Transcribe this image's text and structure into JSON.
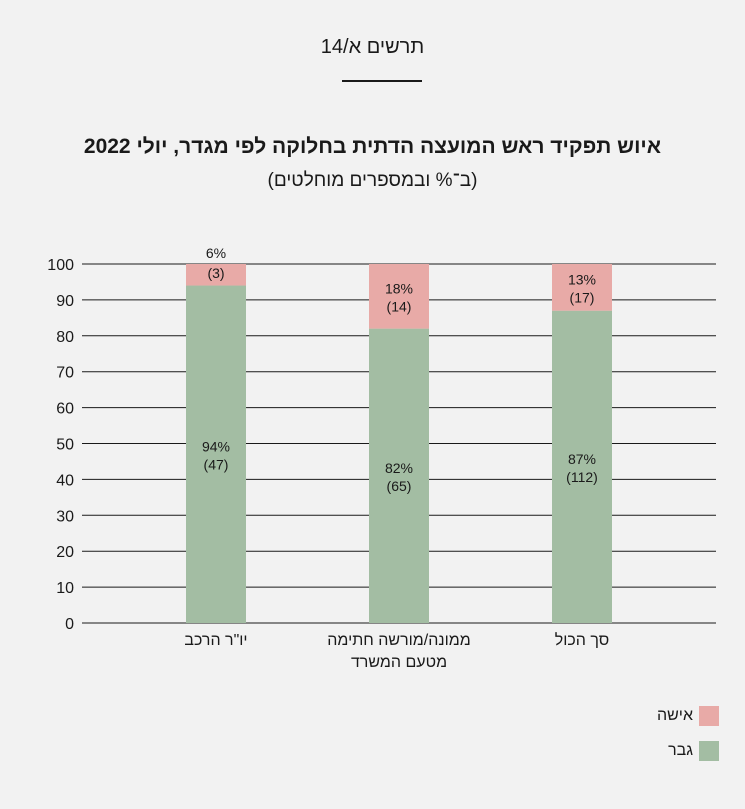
{
  "header": {
    "label": "תרשים א/14"
  },
  "chart_data": {
    "type": "bar",
    "stacked": true,
    "title": "איוש תפקיד ראש המועצה הדתית בחלוקה לפי מגדר, יולי 2022",
    "subtitle": "(ב־% ובמספרים מוחלטים)",
    "ylim": [
      0,
      100
    ],
    "yticks": [
      0,
      10,
      20,
      30,
      40,
      50,
      60,
      70,
      80,
      90,
      100
    ],
    "grid": true,
    "categories": [
      [
        "יו\"ר הרכב"
      ],
      [
        "ממונה/מורשה חתימה",
        "מטעם המשרד"
      ],
      [
        "סך הכול"
      ]
    ],
    "series": [
      {
        "name": "גבר",
        "color": "#a3bda3",
        "values": [
          94,
          82,
          87
        ],
        "counts": [
          "(47)",
          "(65)",
          "(112)"
        ],
        "labels": [
          "94%",
          "82%",
          "87%"
        ]
      },
      {
        "name": "אישה",
        "color": "#e8aaa7",
        "values": [
          6,
          18,
          13
        ],
        "counts": [
          "(3)",
          "(14)",
          "(17)"
        ],
        "labels": [
          "6%",
          "18%",
          "13%"
        ]
      }
    ],
    "legend_position": "bottom-right"
  },
  "legend": [
    {
      "label": "אישה",
      "color": "#e8aaa7"
    },
    {
      "label": "גבר",
      "color": "#a3bda3"
    }
  ]
}
